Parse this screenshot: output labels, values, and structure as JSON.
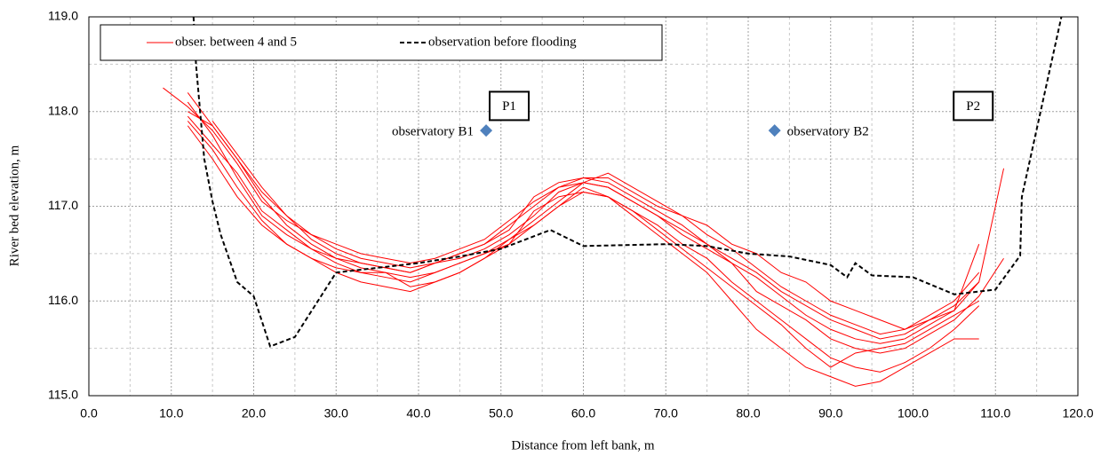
{
  "chart_data": {
    "type": "line",
    "xlabel": "Distance from left bank, m",
    "ylabel": "River bed elevation, m",
    "xlim": [
      0,
      120
    ],
    "ylim": [
      115,
      119
    ],
    "xticks": [
      {
        "value": 0,
        "label": "0.0"
      },
      {
        "value": 10,
        "label": "10.0"
      },
      {
        "value": 20,
        "label": "20.0"
      },
      {
        "value": 30,
        "label": "30.0"
      },
      {
        "value": 40,
        "label": "40.0"
      },
      {
        "value": 50,
        "label": "50.0"
      },
      {
        "value": 60,
        "label": "60.0"
      },
      {
        "value": 70,
        "label": "70.0"
      },
      {
        "value": 80,
        "label": "80.0"
      },
      {
        "value": 90,
        "label": "90.0"
      },
      {
        "value": 100,
        "label": "100.0"
      },
      {
        "value": 110,
        "label": "110.0"
      },
      {
        "value": 120,
        "label": "120.0"
      }
    ],
    "yticks": [
      {
        "value": 115,
        "label": "115.0"
      },
      {
        "value": 116,
        "label": "116.0"
      },
      {
        "value": 117,
        "label": "117.0"
      },
      {
        "value": 118,
        "label": "118.0"
      },
      {
        "value": 119,
        "label": "119.0"
      }
    ],
    "xminor": [
      5,
      15,
      25,
      35,
      45,
      55,
      65,
      75,
      85,
      95,
      105,
      115
    ],
    "yminor": [
      115.5,
      116.5,
      117.5,
      118.5
    ],
    "grid": true,
    "legend": "upper left",
    "series": [
      {
        "name": "obser. between 4 and 5",
        "color": "#ff0000",
        "x": [
          9,
          12,
          15,
          18,
          21,
          24,
          27,
          30,
          33,
          36,
          39,
          42,
          45,
          48,
          51,
          54,
          57,
          60,
          63,
          66,
          69,
          72,
          75,
          78,
          81,
          84,
          87,
          90,
          93,
          96,
          99,
          102,
          105,
          108,
          111
        ],
        "lines": [
          [
            118.25,
            118.05,
            117.8,
            117.45,
            117.05,
            116.85,
            116.7,
            116.55,
            116.45,
            116.4,
            116.35,
            116.4,
            116.5,
            116.6,
            116.8,
            117.0,
            117.2,
            117.3,
            117.25,
            117.1,
            116.95,
            116.8,
            116.6,
            116.45,
            116.3,
            116.1,
            115.95,
            115.8,
            115.7,
            115.6,
            115.65,
            115.8,
            115.95,
            116.2,
            null
          ],
          [
            null,
            118.1,
            117.75,
            117.3,
            116.9,
            116.7,
            116.55,
            116.4,
            116.3,
            116.25,
            116.2,
            116.3,
            116.4,
            116.5,
            116.65,
            116.85,
            117.05,
            117.25,
            117.2,
            117.05,
            116.9,
            116.75,
            116.6,
            116.4,
            116.1,
            115.95,
            115.8,
            115.6,
            115.5,
            115.45,
            115.5,
            115.65,
            115.8,
            116.05,
            116.45
          ],
          [
            null,
            117.9,
            117.6,
            117.2,
            116.85,
            116.6,
            116.45,
            116.35,
            116.3,
            116.3,
            116.25,
            116.3,
            116.4,
            116.5,
            116.6,
            116.95,
            117.1,
            117.15,
            117.1,
            116.95,
            116.8,
            116.6,
            116.45,
            116.2,
            116.0,
            115.8,
            115.6,
            115.4,
            115.3,
            115.25,
            115.35,
            115.5,
            115.7,
            115.95,
            null
          ],
          [
            null,
            118.0,
            117.85,
            117.5,
            117.1,
            116.8,
            116.6,
            116.45,
            116.4,
            116.35,
            116.3,
            116.4,
            116.5,
            116.6,
            116.75,
            117.1,
            117.25,
            117.3,
            117.3,
            117.15,
            117.0,
            116.9,
            116.8,
            116.6,
            116.5,
            116.3,
            116.2,
            116.0,
            115.9,
            115.8,
            115.7,
            115.8,
            115.9,
            116.2,
            117.4
          ],
          [
            null,
            117.95,
            117.65,
            117.35,
            116.95,
            116.75,
            116.55,
            116.45,
            116.35,
            116.3,
            116.15,
            116.2,
            116.3,
            116.45,
            116.6,
            116.8,
            117.0,
            117.2,
            117.1,
            116.9,
            116.7,
            116.5,
            116.3,
            116.0,
            115.7,
            115.5,
            115.3,
            115.2,
            115.1,
            115.15,
            115.3,
            115.45,
            115.6,
            115.6,
            null
          ],
          [
            null,
            null,
            117.9,
            117.55,
            117.2,
            116.9,
            116.65,
            116.5,
            116.4,
            116.35,
            116.3,
            116.4,
            116.45,
            116.55,
            116.7,
            116.9,
            117.15,
            117.25,
            117.2,
            117.05,
            116.9,
            116.7,
            116.55,
            116.4,
            116.25,
            116.05,
            115.85,
            115.7,
            115.6,
            115.55,
            115.6,
            115.75,
            115.9,
            116.6,
            null
          ],
          [
            null,
            118.2,
            117.85,
            117.5,
            117.15,
            116.9,
            116.7,
            116.6,
            116.5,
            116.45,
            116.4,
            116.45,
            116.55,
            116.65,
            116.85,
            117.05,
            117.2,
            117.25,
            117.35,
            117.2,
            117.05,
            116.9,
            116.7,
            116.55,
            116.35,
            116.15,
            116.0,
            115.85,
            115.75,
            115.65,
            115.7,
            115.85,
            116.0,
            116.3,
            null
          ],
          [
            null,
            117.85,
            117.5,
            117.1,
            116.8,
            116.6,
            116.45,
            116.3,
            116.2,
            116.15,
            116.1,
            116.2,
            116.3,
            116.45,
            116.65,
            116.8,
            117.0,
            117.15,
            117.1,
            116.95,
            116.75,
            116.55,
            116.35,
            116.15,
            115.95,
            115.75,
            115.5,
            115.3,
            115.45,
            115.5,
            115.55,
            115.7,
            115.85,
            116.0,
            null
          ]
        ]
      },
      {
        "name": "observation before flooding",
        "color": "#000000",
        "dashed": true,
        "x": [
          12.7,
          13,
          14,
          15,
          16,
          18,
          20,
          22,
          25,
          30,
          35,
          40,
          45,
          50,
          56,
          60,
          70,
          75,
          80,
          85,
          90,
          92,
          93,
          95,
          100,
          105,
          110,
          113,
          113.2,
          118
        ],
        "values": [
          119,
          118.5,
          117.5,
          117.05,
          116.7,
          116.2,
          116.05,
          115.52,
          115.62,
          116.3,
          116.35,
          116.4,
          116.47,
          116.55,
          116.75,
          116.58,
          116.6,
          116.58,
          116.5,
          116.47,
          116.38,
          116.25,
          116.4,
          116.27,
          116.25,
          116.07,
          116.12,
          116.48,
          117.1,
          119
        ]
      }
    ],
    "points": [
      {
        "label": "observatory B1",
        "x": 48.2,
        "y": 117.8
      },
      {
        "label": "observatory B2",
        "x": 83.2,
        "y": 117.8
      }
    ],
    "point_color": "#4f81bd",
    "annotations": [
      {
        "text": "P1",
        "x": 51,
        "y": 118.05
      },
      {
        "text": "P2",
        "x": 107.3,
        "y": 118.05
      }
    ]
  }
}
